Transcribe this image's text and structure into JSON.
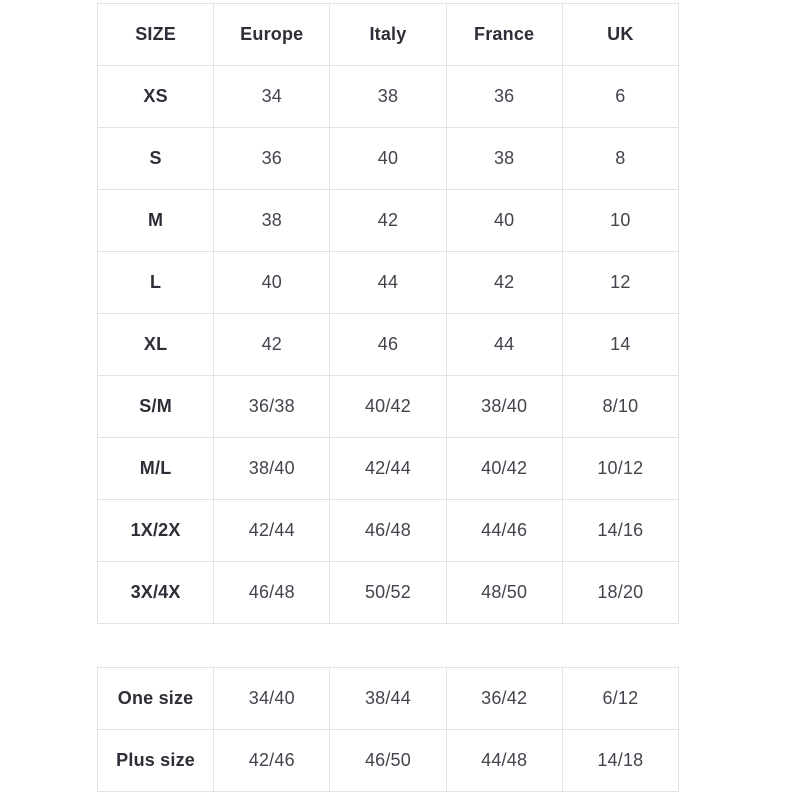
{
  "colors": {
    "border": "#e2e2e2",
    "header_text": "#2e2e38",
    "cell_text": "#44444e",
    "background": "#ffffff"
  },
  "main_table": {
    "headers": [
      "SIZE",
      "Europe",
      "Italy",
      "France",
      "UK"
    ],
    "rows": [
      [
        "XS",
        "34",
        "38",
        "36",
        "6"
      ],
      [
        "S",
        "36",
        "40",
        "38",
        "8"
      ],
      [
        "M",
        "38",
        "42",
        "40",
        "10"
      ],
      [
        "L",
        "40",
        "44",
        "42",
        "12"
      ],
      [
        "XL",
        "42",
        "46",
        "44",
        "14"
      ],
      [
        "S/M",
        "36/38",
        "40/42",
        "38/40",
        "8/10"
      ],
      [
        "M/L",
        "38/40",
        "42/44",
        "40/42",
        "10/12"
      ],
      [
        "1X/2X",
        "42/44",
        "46/48",
        "44/46",
        "14/16"
      ],
      [
        "3X/4X",
        "46/48",
        "50/52",
        "48/50",
        "18/20"
      ]
    ]
  },
  "extra_table": {
    "rows": [
      [
        "One size",
        "34/40",
        "38/44",
        "36/42",
        "6/12"
      ],
      [
        "Plus size",
        "42/46",
        "46/50",
        "44/48",
        "14/18"
      ]
    ]
  }
}
